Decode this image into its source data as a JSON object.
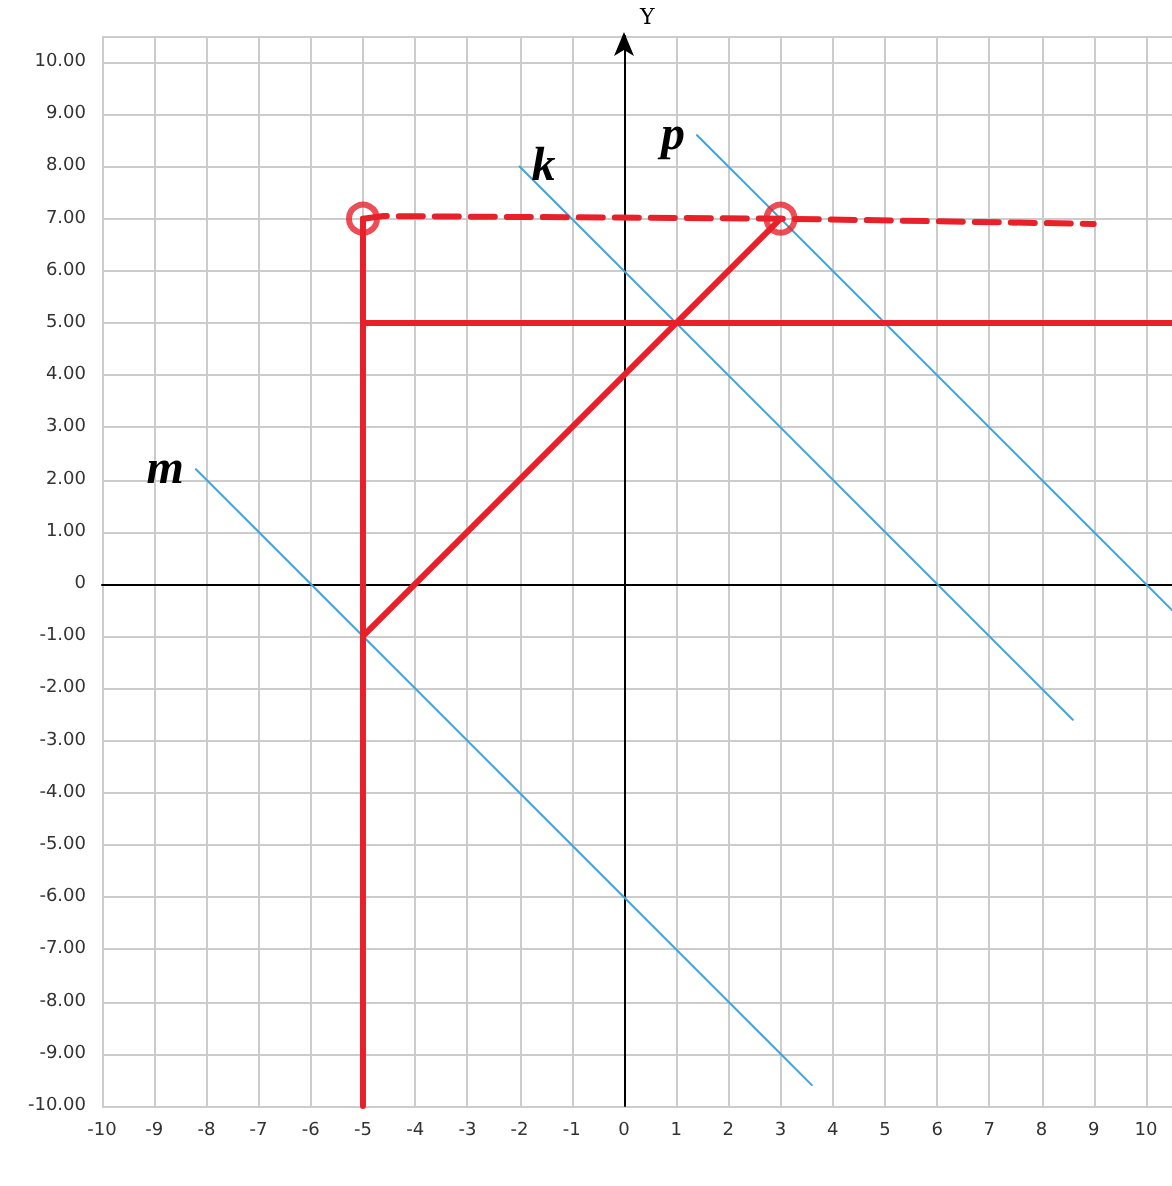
{
  "chart_data": {
    "type": "line",
    "ylabel": "Y",
    "xlim": [
      -10,
      10.5
    ],
    "ylim": [
      -10,
      10.5
    ],
    "xticks": [
      -10,
      -9,
      -8,
      -7,
      -6,
      -5,
      -4,
      -3,
      -2,
      -1,
      0,
      1,
      2,
      3,
      4,
      5,
      6,
      7,
      8,
      9,
      10
    ],
    "yticks": [
      {
        "value": -10,
        "label": "-10.00"
      },
      {
        "value": -9,
        "label": "-9.00"
      },
      {
        "value": -8,
        "label": "-8.00"
      },
      {
        "value": -7,
        "label": "-7.00"
      },
      {
        "value": -6,
        "label": "-6.00"
      },
      {
        "value": -5,
        "label": "-5.00"
      },
      {
        "value": -4,
        "label": "-4.00"
      },
      {
        "value": -3,
        "label": "-3.00"
      },
      {
        "value": -2,
        "label": "-2.00"
      },
      {
        "value": -1,
        "label": "-1.00"
      },
      {
        "value": 0,
        "label": "0"
      },
      {
        "value": 1,
        "label": "1.00"
      },
      {
        "value": 2,
        "label": "2.00"
      },
      {
        "value": 3,
        "label": "3.00"
      },
      {
        "value": 4,
        "label": "4.00"
      },
      {
        "value": 5,
        "label": "5.00"
      },
      {
        "value": 6,
        "label": "6.00"
      },
      {
        "value": 7,
        "label": "7.00"
      },
      {
        "value": 8,
        "label": "8.00"
      },
      {
        "value": 9,
        "label": "9.00"
      },
      {
        "value": 10,
        "label": "10.00"
      }
    ],
    "grid": true,
    "marker": "none",
    "line_style": "solid",
    "series": [
      {
        "name": "m",
        "color": "#3aa6dd",
        "x": [
          -8.2,
          3.6
        ],
        "values": [
          2.2,
          -9.6
        ]
      },
      {
        "name": "k",
        "color": "#3aa6dd",
        "x": [
          -2,
          8.6
        ],
        "values": [
          8,
          -2.6
        ]
      },
      {
        "name": "p",
        "color": "#3aa6dd",
        "x": [
          1.4,
          10.5
        ],
        "values": [
          8.6,
          -0.5
        ]
      },
      {
        "color": "#e8202a",
        "x": [
          -5,
          -5
        ],
        "values": [
          -10,
          7
        ]
      },
      {
        "color": "#e8202a",
        "x": [
          -5,
          10.5
        ],
        "values": [
          5,
          5
        ]
      },
      {
        "color": "#e8202a",
        "x": [
          -5,
          3
        ],
        "values": [
          -1,
          7
        ]
      },
      {
        "color": "#e8202a",
        "x": [
          -5,
          -4.6,
          3,
          9
        ],
        "values": [
          7,
          7.05,
          7,
          6.9
        ],
        "line_style": "dashed"
      },
      {
        "type": "scatter",
        "color": "#e8202a",
        "x": [
          -5,
          3
        ],
        "values": [
          7,
          7
        ],
        "marker": "circle"
      }
    ]
  }
}
